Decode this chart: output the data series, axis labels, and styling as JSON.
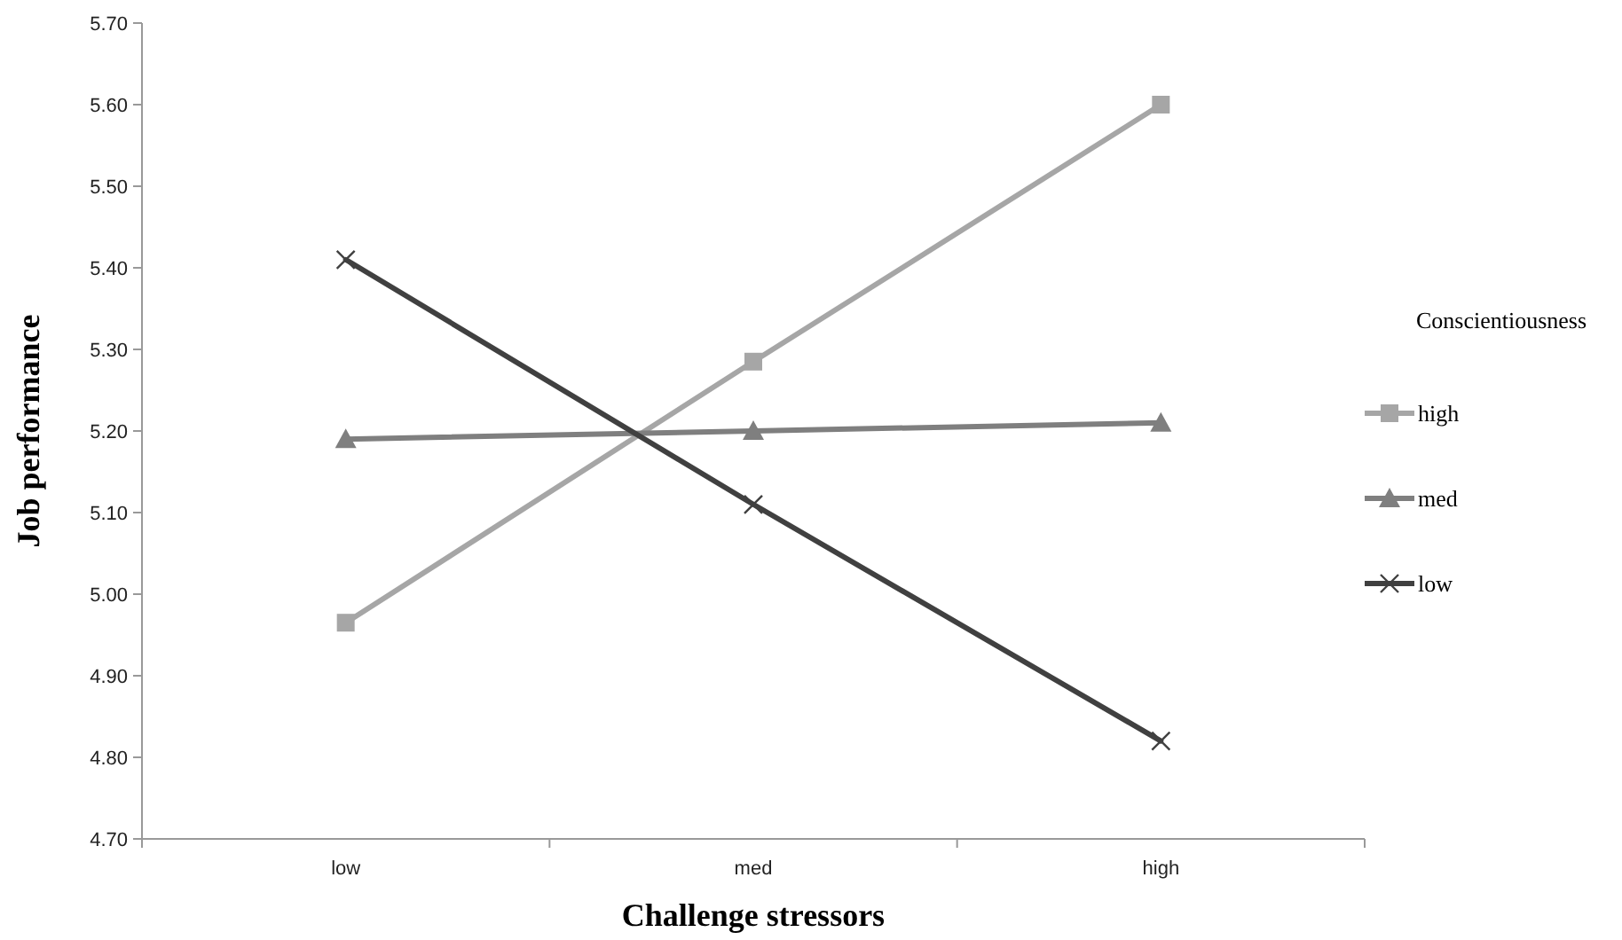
{
  "chart_data": {
    "type": "line",
    "xlabel": "Challenge stressors",
    "ylabel": "Job performance",
    "legend_title": "Conscientiousness",
    "legend": "right",
    "grid": false,
    "categories": [
      "low",
      "med",
      "high"
    ],
    "ylim": [
      4.7,
      5.7
    ],
    "yticks": [
      {
        "value": 4.7,
        "label": "4.70"
      },
      {
        "value": 4.8,
        "label": "4.80"
      },
      {
        "value": 4.9,
        "label": "4.90"
      },
      {
        "value": 5.0,
        "label": "5.00"
      },
      {
        "value": 5.1,
        "label": "5.10"
      },
      {
        "value": 5.2,
        "label": "5.20"
      },
      {
        "value": 5.3,
        "label": "5.30"
      },
      {
        "value": 5.4,
        "label": "5.40"
      },
      {
        "value": 5.5,
        "label": "5.50"
      },
      {
        "value": 5.6,
        "label": "5.60"
      },
      {
        "value": 5.7,
        "label": "5.70"
      }
    ],
    "series": [
      {
        "name": "high",
        "color": "#a6a6a6",
        "marker": "square",
        "values": [
          4.965,
          5.285,
          5.6
        ]
      },
      {
        "name": "med",
        "color": "#7f7f7f",
        "marker": "triangle",
        "values": [
          5.19,
          5.2,
          5.21
        ]
      },
      {
        "name": "low",
        "color": "#404040",
        "marker": "cross",
        "values": [
          5.41,
          5.11,
          4.82
        ]
      }
    ]
  }
}
